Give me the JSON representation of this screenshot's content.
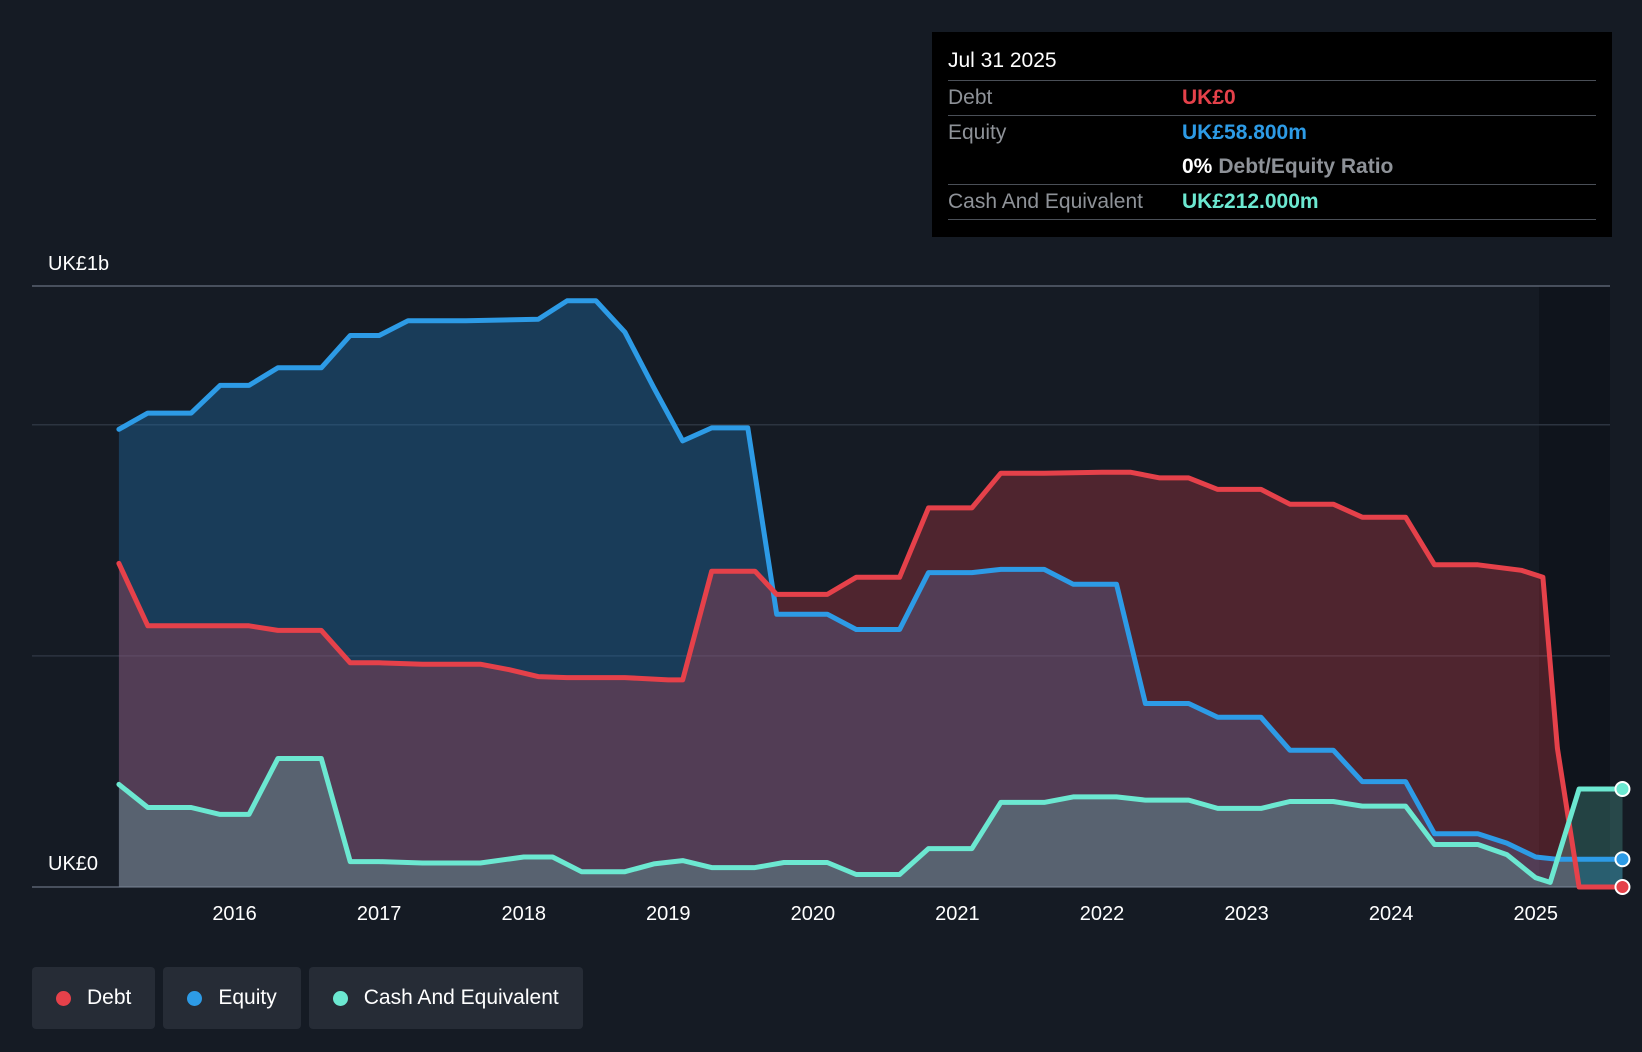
{
  "chart_data": {
    "type": "area",
    "y_top_label": "UK£1b",
    "y_bottom_label": "UK£0",
    "ylim": [
      0,
      1300
    ],
    "x_ticks": [
      "2016",
      "2017",
      "2018",
      "2019",
      "2020",
      "2021",
      "2022",
      "2023",
      "2024",
      "2025"
    ],
    "xlim": [
      2015.1,
      2025.6
    ],
    "grid": true,
    "series": [
      {
        "name": "Debt",
        "color": "#e5414a",
        "points": [
          [
            2015.2,
            700
          ],
          [
            2015.4,
            565
          ],
          [
            2015.7,
            565
          ],
          [
            2016.1,
            565
          ],
          [
            2016.3,
            555
          ],
          [
            2016.6,
            555
          ],
          [
            2016.8,
            485
          ],
          [
            2017.0,
            485
          ],
          [
            2017.3,
            482
          ],
          [
            2017.7,
            482
          ],
          [
            2017.9,
            470
          ],
          [
            2018.1,
            455
          ],
          [
            2018.3,
            453
          ],
          [
            2018.7,
            453
          ],
          [
            2019.0,
            448
          ],
          [
            2019.1,
            448
          ],
          [
            2019.3,
            683
          ],
          [
            2019.6,
            683
          ],
          [
            2019.75,
            633
          ],
          [
            2020.1,
            633
          ],
          [
            2020.3,
            670
          ],
          [
            2020.6,
            670
          ],
          [
            2020.8,
            820
          ],
          [
            2021.1,
            820
          ],
          [
            2021.3,
            895
          ],
          [
            2021.6,
            895
          ],
          [
            2022.0,
            897
          ],
          [
            2022.2,
            897
          ],
          [
            2022.4,
            885
          ],
          [
            2022.6,
            885
          ],
          [
            2022.8,
            860
          ],
          [
            2023.1,
            860
          ],
          [
            2023.3,
            828
          ],
          [
            2023.6,
            828
          ],
          [
            2023.8,
            800
          ],
          [
            2024.1,
            800
          ],
          [
            2024.3,
            697
          ],
          [
            2024.6,
            697
          ],
          [
            2024.9,
            685
          ],
          [
            2025.05,
            670
          ],
          [
            2025.15,
            300
          ],
          [
            2025.3,
            0
          ],
          [
            2025.6,
            0
          ]
        ]
      },
      {
        "name": "Equity",
        "color": "#2d9be6",
        "points": [
          [
            2015.2,
            990
          ],
          [
            2015.4,
            1025
          ],
          [
            2015.7,
            1025
          ],
          [
            2015.9,
            1085
          ],
          [
            2016.1,
            1085
          ],
          [
            2016.3,
            1123
          ],
          [
            2016.6,
            1123
          ],
          [
            2016.8,
            1193
          ],
          [
            2017.0,
            1193
          ],
          [
            2017.2,
            1225
          ],
          [
            2017.6,
            1225
          ],
          [
            2018.1,
            1228
          ],
          [
            2018.3,
            1268
          ],
          [
            2018.5,
            1268
          ],
          [
            2018.7,
            1200
          ],
          [
            2018.9,
            1080
          ],
          [
            2019.1,
            965
          ],
          [
            2019.3,
            993
          ],
          [
            2019.55,
            993
          ],
          [
            2019.75,
            590
          ],
          [
            2020.1,
            590
          ],
          [
            2020.3,
            557
          ],
          [
            2020.6,
            557
          ],
          [
            2020.8,
            680
          ],
          [
            2021.1,
            680
          ],
          [
            2021.3,
            687
          ],
          [
            2021.6,
            687
          ],
          [
            2021.8,
            655
          ],
          [
            2022.1,
            655
          ],
          [
            2022.3,
            397
          ],
          [
            2022.6,
            397
          ],
          [
            2022.8,
            367
          ],
          [
            2023.1,
            367
          ],
          [
            2023.3,
            296
          ],
          [
            2023.6,
            296
          ],
          [
            2023.8,
            228
          ],
          [
            2024.1,
            228
          ],
          [
            2024.3,
            115
          ],
          [
            2024.6,
            115
          ],
          [
            2024.8,
            95
          ],
          [
            2025.0,
            65
          ],
          [
            2025.15,
            60
          ],
          [
            2025.6,
            60
          ]
        ]
      },
      {
        "name": "Cash And Equivalent",
        "color": "#6ce8d1",
        "points": [
          [
            2015.2,
            222
          ],
          [
            2015.4,
            172
          ],
          [
            2015.7,
            172
          ],
          [
            2015.9,
            157
          ],
          [
            2016.1,
            157
          ],
          [
            2016.3,
            278
          ],
          [
            2016.6,
            278
          ],
          [
            2016.8,
            55
          ],
          [
            2017.0,
            55
          ],
          [
            2017.3,
            52
          ],
          [
            2017.7,
            52
          ],
          [
            2018.0,
            65
          ],
          [
            2018.2,
            65
          ],
          [
            2018.4,
            33
          ],
          [
            2018.7,
            33
          ],
          [
            2018.9,
            50
          ],
          [
            2019.1,
            57
          ],
          [
            2019.3,
            42
          ],
          [
            2019.6,
            42
          ],
          [
            2019.8,
            53
          ],
          [
            2020.1,
            53
          ],
          [
            2020.3,
            27
          ],
          [
            2020.6,
            27
          ],
          [
            2020.8,
            83
          ],
          [
            2021.1,
            83
          ],
          [
            2021.3,
            183
          ],
          [
            2021.6,
            183
          ],
          [
            2021.8,
            195
          ],
          [
            2022.1,
            195
          ],
          [
            2022.3,
            188
          ],
          [
            2022.6,
            188
          ],
          [
            2022.8,
            170
          ],
          [
            2023.1,
            170
          ],
          [
            2023.3,
            185
          ],
          [
            2023.6,
            185
          ],
          [
            2023.8,
            175
          ],
          [
            2024.1,
            175
          ],
          [
            2024.3,
            92
          ],
          [
            2024.6,
            92
          ],
          [
            2024.8,
            70
          ],
          [
            2025.0,
            20
          ],
          [
            2025.1,
            10
          ],
          [
            2025.3,
            212
          ],
          [
            2025.6,
            212
          ]
        ]
      }
    ]
  },
  "tooltip": {
    "date": "Jul 31 2025",
    "debt_label": "Debt",
    "debt_value": "UK£0",
    "equity_label": "Equity",
    "equity_value": "UK£58.800m",
    "ratio_value": "0%",
    "ratio_label": "Debt/Equity Ratio",
    "cash_label": "Cash And Equivalent",
    "cash_value": "UK£212.000m"
  },
  "legend": {
    "items": [
      {
        "label": "Debt",
        "color": "#e5414a"
      },
      {
        "label": "Equity",
        "color": "#2d9be6"
      },
      {
        "label": "Cash And Equivalent",
        "color": "#6ce8d1"
      }
    ]
  }
}
